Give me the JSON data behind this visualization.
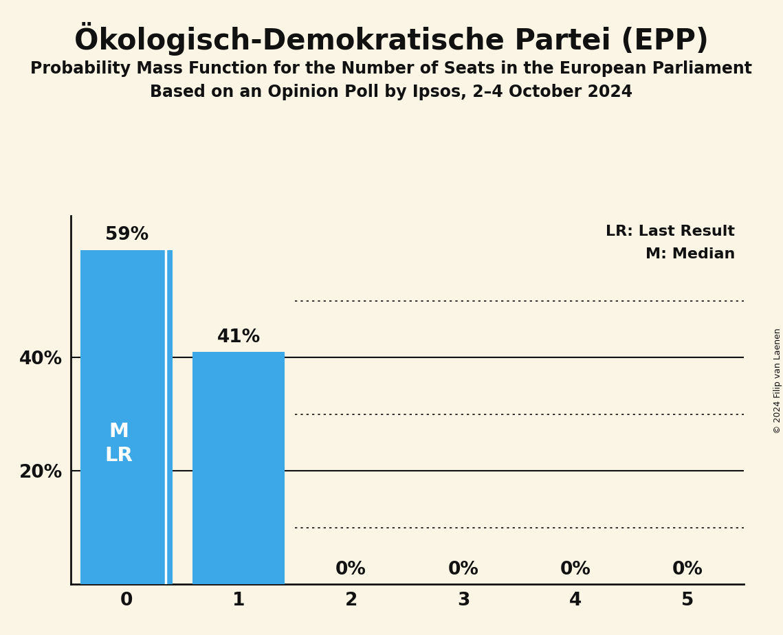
{
  "title": "Ökologisch-Demokratische Partei (EPP)",
  "subtitle1": "Probability Mass Function for the Number of Seats in the European Parliament",
  "subtitle2": "Based on an Opinion Poll by Ipsos, 2–4 October 2024",
  "copyright": "© 2024 Filip van Laenen",
  "categories": [
    0,
    1,
    2,
    3,
    4,
    5
  ],
  "values": [
    0.59,
    0.41,
    0.0,
    0.0,
    0.0,
    0.0
  ],
  "bar_color": "#3da8e8",
  "background_color": "#faf5e4",
  "text_color": "#111111",
  "label_color_white": "#ffffff",
  "ylim": [
    0,
    0.65
  ],
  "solid_grid": [
    0.2,
    0.4
  ],
  "dotted_grid": [
    0.1,
    0.3,
    0.5
  ],
  "legend_lr": "LR: Last Result",
  "legend_m": "M: Median",
  "title_fontsize": 30,
  "subtitle_fontsize": 17,
  "bar_label_fontsize": 19,
  "tick_fontsize": 19,
  "legend_fontsize": 16,
  "copyright_fontsize": 9
}
